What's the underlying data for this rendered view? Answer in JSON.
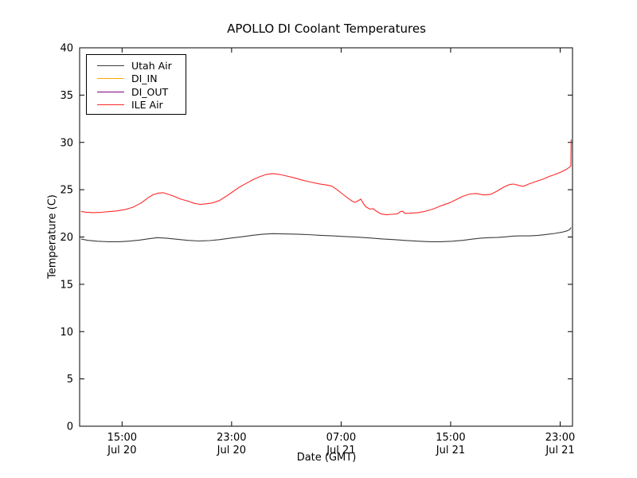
{
  "chart_data": {
    "type": "line",
    "title": "APOLLO DI Coolant Temperatures",
    "xlabel": "Date (GMT)",
    "ylabel": "Temperature (C)",
    "background": "#ffffff",
    "frame_color": "#000000",
    "grid": false,
    "legend_position": "upper-left",
    "ylim": [
      0,
      40
    ],
    "yticks": [
      0,
      5,
      10,
      15,
      20,
      25,
      30,
      35,
      40
    ],
    "x_unit": "hours since Jul 20 12:00 GMT",
    "xlim_hours": [
      -0.1,
      35.9
    ],
    "xticks": [
      {
        "hour": 3,
        "time": "15:00",
        "date": "Jul 20"
      },
      {
        "hour": 11,
        "time": "23:00",
        "date": "Jul 20"
      },
      {
        "hour": 19,
        "time": "07:00",
        "date": "Jul 21"
      },
      {
        "hour": 27,
        "time": "15:00",
        "date": "Jul 21"
      },
      {
        "hour": 35,
        "time": "23:00",
        "date": "Jul 21"
      }
    ],
    "series": [
      {
        "name": "Utah Air",
        "color": "#3d3d3d",
        "points": [
          [
            0,
            19.8
          ],
          [
            0.5,
            19.65
          ],
          [
            1.2,
            19.55
          ],
          [
            2.0,
            19.5
          ],
          [
            2.8,
            19.5
          ],
          [
            3.6,
            19.57
          ],
          [
            4.3,
            19.68
          ],
          [
            5.0,
            19.82
          ],
          [
            5.6,
            19.93
          ],
          [
            6.2,
            19.88
          ],
          [
            7.0,
            19.76
          ],
          [
            7.8,
            19.65
          ],
          [
            8.6,
            19.58
          ],
          [
            9.4,
            19.62
          ],
          [
            10.1,
            19.72
          ],
          [
            10.9,
            19.88
          ],
          [
            11.7,
            20.02
          ],
          [
            12.5,
            20.18
          ],
          [
            13.3,
            20.3
          ],
          [
            14.0,
            20.35
          ],
          [
            14.8,
            20.33
          ],
          [
            15.7,
            20.3
          ],
          [
            16.6,
            20.25
          ],
          [
            17.5,
            20.18
          ],
          [
            18.4,
            20.12
          ],
          [
            19.3,
            20.05
          ],
          [
            20.2,
            19.98
          ],
          [
            21.1,
            19.9
          ],
          [
            22.0,
            19.8
          ],
          [
            22.9,
            19.72
          ],
          [
            23.8,
            19.63
          ],
          [
            24.7,
            19.55
          ],
          [
            25.5,
            19.5
          ],
          [
            26.3,
            19.5
          ],
          [
            27.1,
            19.55
          ],
          [
            27.9,
            19.65
          ],
          [
            28.6,
            19.78
          ],
          [
            29.2,
            19.88
          ],
          [
            29.8,
            19.93
          ],
          [
            30.4,
            19.95
          ],
          [
            31.0,
            20.02
          ],
          [
            31.6,
            20.1
          ],
          [
            32.2,
            20.12
          ],
          [
            32.8,
            20.12
          ],
          [
            33.4,
            20.18
          ],
          [
            34.0,
            20.27
          ],
          [
            34.6,
            20.38
          ],
          [
            35.1,
            20.5
          ],
          [
            35.5,
            20.65
          ],
          [
            35.7,
            20.8
          ],
          [
            35.8,
            21.0
          ]
        ]
      },
      {
        "name": "DI_IN",
        "color": "#ffa500",
        "points": []
      },
      {
        "name": "DI_OUT",
        "color": "#800080",
        "points": []
      },
      {
        "name": "ILE Air",
        "color": "#ff2a2a",
        "points": [
          [
            0,
            22.7
          ],
          [
            0.4,
            22.62
          ],
          [
            0.9,
            22.58
          ],
          [
            1.4,
            22.6
          ],
          [
            2.0,
            22.68
          ],
          [
            2.6,
            22.75
          ],
          [
            3.2,
            22.9
          ],
          [
            3.8,
            23.15
          ],
          [
            4.4,
            23.6
          ],
          [
            4.9,
            24.15
          ],
          [
            5.3,
            24.5
          ],
          [
            5.7,
            24.65
          ],
          [
            6.0,
            24.68
          ],
          [
            6.3,
            24.55
          ],
          [
            6.8,
            24.3
          ],
          [
            7.3,
            24.0
          ],
          [
            7.8,
            23.8
          ],
          [
            8.3,
            23.55
          ],
          [
            8.7,
            23.45
          ],
          [
            9.1,
            23.5
          ],
          [
            9.6,
            23.6
          ],
          [
            10.1,
            23.85
          ],
          [
            10.6,
            24.3
          ],
          [
            11.1,
            24.8
          ],
          [
            11.6,
            25.3
          ],
          [
            12.1,
            25.7
          ],
          [
            12.6,
            26.1
          ],
          [
            13.1,
            26.4
          ],
          [
            13.5,
            26.6
          ],
          [
            14.0,
            26.7
          ],
          [
            14.5,
            26.62
          ],
          [
            15.0,
            26.45
          ],
          [
            15.6,
            26.25
          ],
          [
            16.2,
            26.0
          ],
          [
            16.8,
            25.8
          ],
          [
            17.4,
            25.62
          ],
          [
            18.0,
            25.48
          ],
          [
            18.3,
            25.4
          ],
          [
            18.7,
            25.0
          ],
          [
            19.1,
            24.55
          ],
          [
            19.5,
            24.1
          ],
          [
            19.8,
            23.8
          ],
          [
            20.0,
            23.65
          ],
          [
            20.2,
            23.8
          ],
          [
            20.45,
            24.0
          ],
          [
            20.6,
            23.6
          ],
          [
            20.8,
            23.2
          ],
          [
            21.1,
            22.95
          ],
          [
            21.35,
            23.0
          ],
          [
            21.6,
            22.7
          ],
          [
            21.9,
            22.45
          ],
          [
            22.3,
            22.35
          ],
          [
            22.7,
            22.4
          ],
          [
            23.1,
            22.45
          ],
          [
            23.35,
            22.7
          ],
          [
            23.5,
            22.72
          ],
          [
            23.65,
            22.5
          ],
          [
            24.1,
            22.52
          ],
          [
            24.6,
            22.58
          ],
          [
            25.1,
            22.7
          ],
          [
            25.7,
            22.95
          ],
          [
            26.3,
            23.3
          ],
          [
            26.9,
            23.6
          ],
          [
            27.4,
            23.95
          ],
          [
            27.9,
            24.3
          ],
          [
            28.4,
            24.55
          ],
          [
            28.9,
            24.6
          ],
          [
            29.4,
            24.45
          ],
          [
            29.9,
            24.5
          ],
          [
            30.4,
            24.85
          ],
          [
            30.9,
            25.3
          ],
          [
            31.3,
            25.55
          ],
          [
            31.6,
            25.6
          ],
          [
            32.0,
            25.45
          ],
          [
            32.3,
            25.35
          ],
          [
            32.7,
            25.6
          ],
          [
            33.2,
            25.85
          ],
          [
            33.7,
            26.1
          ],
          [
            34.2,
            26.4
          ],
          [
            34.7,
            26.65
          ],
          [
            35.1,
            26.9
          ],
          [
            35.45,
            27.15
          ],
          [
            35.7,
            27.4
          ],
          [
            35.78,
            27.5
          ],
          [
            35.8,
            30.3
          ]
        ]
      }
    ]
  }
}
